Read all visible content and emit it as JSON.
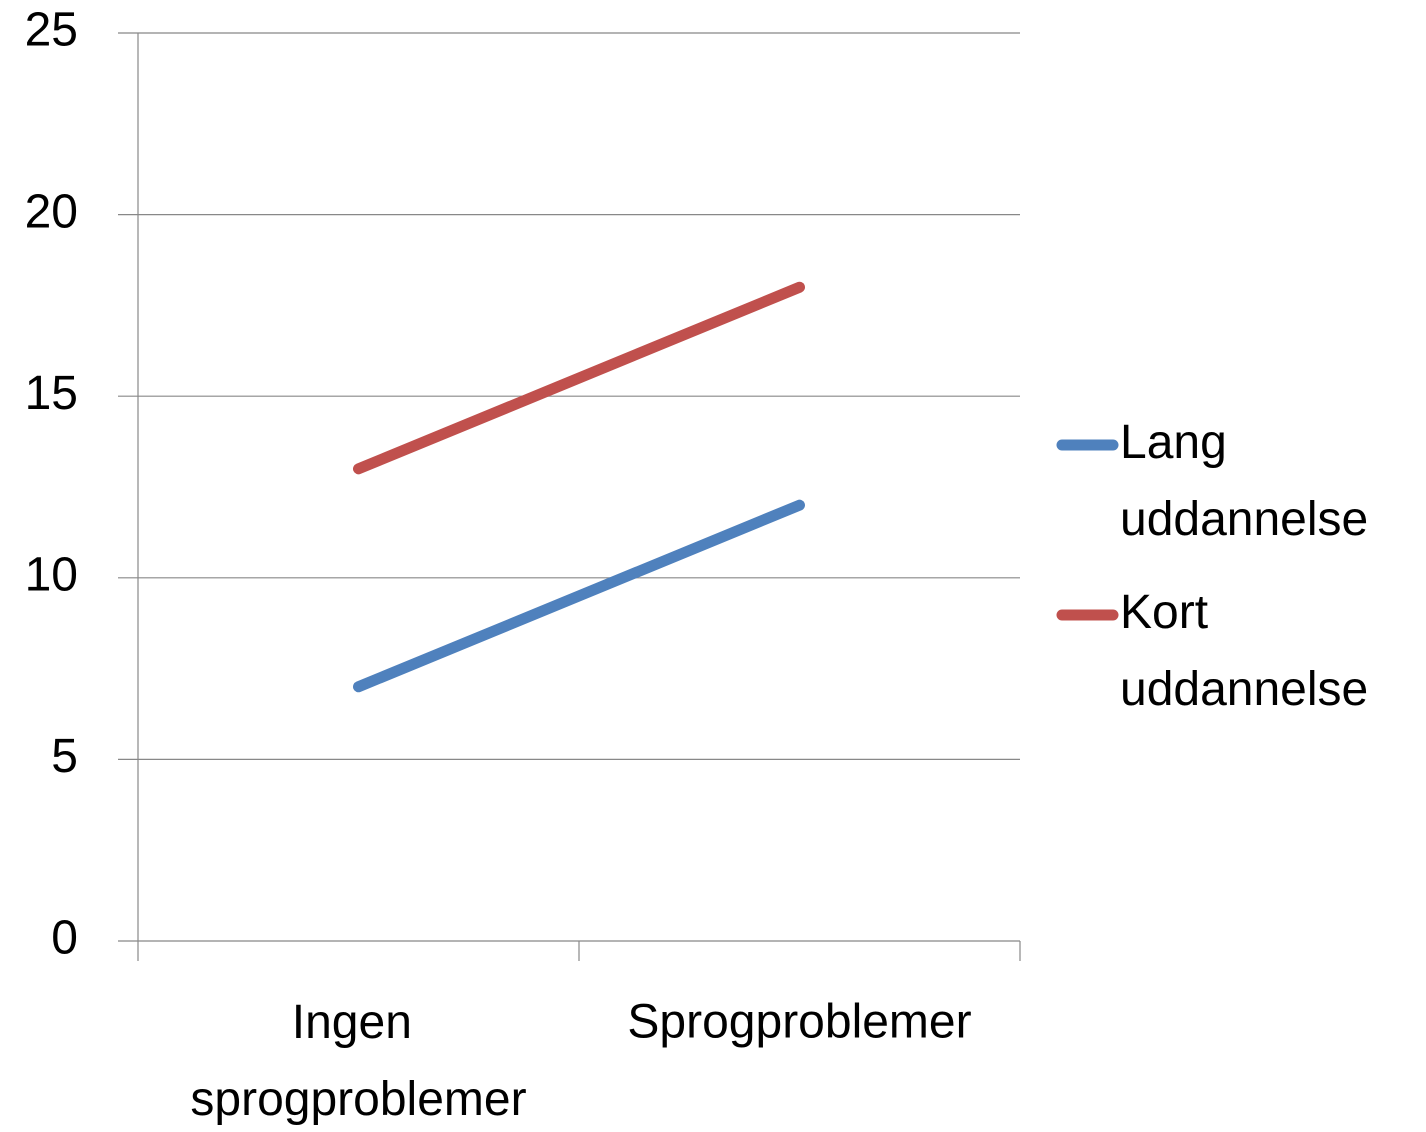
{
  "chart_data": {
    "type": "line",
    "categories": [
      "Ingen sprogproblemer",
      "Sprogproblemer"
    ],
    "series": [
      {
        "name": "Lang uddannelse",
        "color": "#4f81bd",
        "values": [
          7,
          12
        ]
      },
      {
        "name": "Kort uddannelse",
        "color": "#c0504d",
        "values": [
          13,
          18
        ]
      }
    ],
    "ylim": [
      0,
      25
    ],
    "yticks": [
      0,
      5,
      10,
      15,
      20,
      25
    ],
    "grid": true,
    "legend": "right"
  }
}
